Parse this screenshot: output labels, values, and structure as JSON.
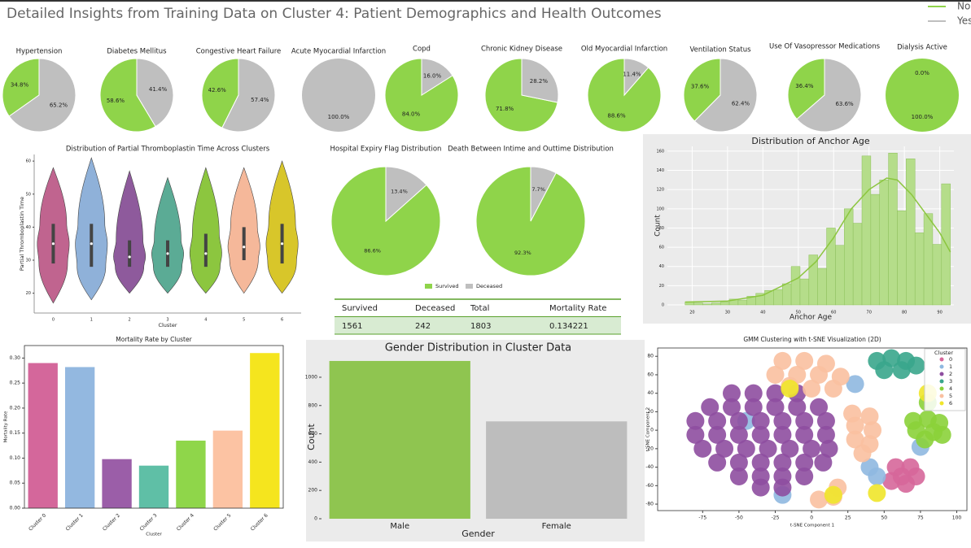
{
  "title": "Detailed Insights from Training Data on  Cluster 4: Patient Demographics and Health Outcomes",
  "chart_data": [
    {
      "type": "legend",
      "series": [
        {
          "name": "No",
          "color": "#8fd44a"
        },
        {
          "name": "Yes",
          "color": "#bfbfbf"
        }
      ]
    },
    {
      "type": "pie",
      "title": "Hypertension",
      "values": [
        34.8,
        65.2
      ],
      "value_labels": [
        "34.8%",
        "65.2%"
      ],
      "colors": [
        "#8fd44a",
        "#bfbfbf"
      ]
    },
    {
      "type": "pie",
      "title": "Diabetes Mellitus",
      "values": [
        58.6,
        41.4
      ],
      "value_labels": [
        "58.6%",
        "41.4%"
      ],
      "colors": [
        "#8fd44a",
        "#bfbfbf"
      ]
    },
    {
      "type": "pie",
      "title": "Congestive Heart Failure",
      "values": [
        42.6,
        57.4
      ],
      "value_labels": [
        "42.6%",
        "57.4%"
      ],
      "colors": [
        "#8fd44a",
        "#bfbfbf"
      ]
    },
    {
      "type": "pie",
      "title": "Acute Myocardial Infarction",
      "values": [
        0.0,
        100.0
      ],
      "value_labels": [
        "0.0%",
        "100.0%"
      ],
      "colors": [
        "#8fd44a",
        "#bfbfbf"
      ]
    },
    {
      "type": "pie",
      "title": "Copd",
      "values": [
        84.0,
        16.0
      ],
      "value_labels": [
        "84.0%",
        "16.0%"
      ],
      "colors": [
        "#8fd44a",
        "#bfbfbf"
      ]
    },
    {
      "type": "pie",
      "title": "Chronic Kidney Disease",
      "values": [
        71.8,
        28.2
      ],
      "value_labels": [
        "71.8%",
        "28.2%"
      ],
      "colors": [
        "#8fd44a",
        "#bfbfbf"
      ]
    },
    {
      "type": "pie",
      "title": "Old Myocardial Infarction",
      "values": [
        88.6,
        11.4
      ],
      "value_labels": [
        "88.6%",
        "11.4%"
      ],
      "colors": [
        "#8fd44a",
        "#bfbfbf"
      ]
    },
    {
      "type": "pie",
      "title": "Ventilation Status",
      "values": [
        37.6,
        62.4
      ],
      "value_labels": [
        "37.6%",
        "62.4%"
      ],
      "colors": [
        "#8fd44a",
        "#bfbfbf"
      ]
    },
    {
      "type": "pie",
      "title": "Use Of Vasopressor Medications",
      "values": [
        36.4,
        63.6
      ],
      "value_labels": [
        "36.4%",
        "63.6%"
      ],
      "colors": [
        "#8fd44a",
        "#bfbfbf"
      ]
    },
    {
      "type": "pie",
      "title": "Dialysis Active",
      "values": [
        100.0,
        0.0
      ],
      "value_labels": [
        "100.0%",
        "0.0%"
      ],
      "colors": [
        "#8fd44a",
        "#bfbfbf"
      ]
    },
    {
      "type": "violin",
      "title": "Distribution of Partial Thromboplastin Time Across Clusters",
      "xlabel": "Cluster",
      "ylabel": "Partial Thromboplastin Time",
      "categories": [
        "0",
        "1",
        "2",
        "3",
        "4",
        "5",
        "6"
      ],
      "colors": [
        "#c0648f",
        "#8fb1d9",
        "#8e5a9c",
        "#5bab95",
        "#8cc63f",
        "#f5b89a",
        "#d8c62a"
      ],
      "min": [
        17,
        18,
        20,
        20,
        20,
        20,
        20
      ],
      "q1": [
        29,
        28,
        28,
        28,
        28,
        30,
        29
      ],
      "median": [
        35,
        35,
        31,
        32,
        32,
        34,
        35
      ],
      "q3": [
        41,
        41,
        36,
        36,
        38,
        40,
        41
      ],
      "max": [
        58,
        61,
        57,
        55,
        58,
        58,
        60
      ],
      "ylim": [
        14,
        62
      ],
      "yticks": [
        20,
        30,
        40,
        50,
        60
      ]
    },
    {
      "type": "pie",
      "title": "Hospital Expiry Flag Distribution",
      "values": [
        86.6,
        13.4
      ],
      "value_labels": [
        "86.6%",
        "13.4%"
      ],
      "colors": [
        "#8fd44a",
        "#bfbfbf"
      ]
    },
    {
      "type": "pie",
      "title": "Death Between Intime and Outtime Distribution",
      "values": [
        92.3,
        7.7
      ],
      "value_labels": [
        "92.3%",
        "7.7%"
      ],
      "colors": [
        "#8fd44a",
        "#bfbfbf"
      ]
    },
    {
      "type": "legend",
      "series": [
        {
          "name": "Survived",
          "color": "#8fd44a"
        },
        {
          "name": "Deceased",
          "color": "#bfbfbf"
        }
      ]
    },
    {
      "type": "histogram",
      "title": "Distribution of Anchor Age",
      "xlabel": "Anchor Age",
      "ylabel": "Count",
      "bins": [
        18,
        20.5,
        23,
        25.5,
        28,
        30.5,
        33,
        35.5,
        38,
        40.5,
        43,
        45.5,
        48,
        50.5,
        53,
        55.5,
        58,
        60.5,
        63,
        65.5,
        68,
        70.5,
        73,
        75.5,
        78,
        80.5,
        83,
        85.5,
        88,
        90.5,
        93
      ],
      "values": [
        3,
        2,
        1,
        2,
        3,
        6,
        5,
        9,
        12,
        15,
        16,
        22,
        40,
        27,
        52,
        38,
        80,
        62,
        100,
        85,
        155,
        115,
        130,
        158,
        98,
        152,
        75,
        95,
        63,
        126
      ],
      "color": "#b5dd8a",
      "kde": {
        "x": [
          18,
          30,
          40,
          50,
          55,
          60,
          65,
          70,
          75,
          78,
          82,
          86,
          90,
          93
        ],
        "values": [
          3,
          4,
          10,
          28,
          45,
          70,
          100,
          120,
          132,
          130,
          115,
          95,
          75,
          55
        ]
      },
      "xlim": [
        13,
        94
      ],
      "xticks": [
        20,
        30,
        40,
        50,
        60,
        70,
        80,
        90
      ],
      "ylim": [
        0,
        165
      ],
      "yticks": [
        0,
        20,
        40,
        60,
        80,
        100,
        120,
        140,
        160
      ],
      "grid": true
    },
    {
      "type": "bar",
      "title": "Mortality Rate by Cluster",
      "xlabel": "Cluster",
      "ylabel": "Mortality Rate",
      "categories": [
        "Cluster 0",
        "Cluster 1",
        "Cluster 2",
        "Cluster 3",
        "Cluster 4",
        "Cluster 5",
        "Cluster 6"
      ],
      "values": [
        0.29,
        0.282,
        0.098,
        0.085,
        0.135,
        0.155,
        0.31
      ],
      "colors": [
        "#d4679b",
        "#93b8e0",
        "#9b5ea8",
        "#5fbfa6",
        "#8fd64a",
        "#fcc3a3",
        "#f5e51e"
      ],
      "ylim": [
        0,
        0.325
      ],
      "yticks": [
        {
          "value": 0,
          "label": "0.00"
        },
        0.05,
        {
          "value": 0.1,
          "label": "0.10"
        },
        0.15,
        {
          "value": 0.2,
          "label": "0.20"
        },
        0.25,
        {
          "value": 0.3,
          "label": "0.30"
        }
      ],
      "rotate_labels": true
    },
    {
      "type": "bar",
      "title": "Gender Distribution in Cluster Data",
      "xlabel": "Gender",
      "ylabel": "Count",
      "categories": [
        "Male",
        "Female"
      ],
      "values": [
        1115,
        688
      ],
      "colors": [
        "#8fc550",
        "#bdbdbd"
      ],
      "ylim": [
        0,
        1155
      ],
      "yticks": [
        0,
        200,
        400,
        600,
        800,
        1000
      ]
    },
    {
      "type": "scatter",
      "title": "GMM Clustering with t-SNE Visualization (2D)",
      "xlabel": "t-SNE Component 1",
      "ylabel": "t-SNE Component 2",
      "legend_title": "Cluster",
      "xlim": [
        -106,
        107
      ],
      "xticks": [
        -75,
        -50,
        -25,
        0,
        25,
        50,
        75,
        100
      ],
      "ylim": [
        -87,
        89
      ],
      "yticks": [
        -80,
        -60,
        -40,
        -20,
        0,
        20,
        40,
        60,
        80
      ],
      "series": [
        {
          "name": "0",
          "color": "#d6679a",
          "x": [
            58,
            68,
            62,
            72,
            65,
            55
          ],
          "values": [
            -40,
            -40,
            -50,
            -50,
            -58,
            -55
          ]
        },
        {
          "name": "1",
          "color": "#8fb8e0",
          "x": [
            40,
            45,
            -45,
            75,
            30,
            -20
          ],
          "values": [
            -40,
            -50,
            10,
            -18,
            50,
            -70
          ]
        },
        {
          "name": "2",
          "color": "#8e4ea0",
          "x": [
            -55,
            -40,
            -25,
            -10,
            -70,
            -55,
            -40,
            -25,
            -10,
            5,
            -80,
            -65,
            -50,
            -35,
            -20,
            -5,
            10,
            -80,
            -65,
            -50,
            -35,
            -20,
            -5,
            10,
            -75,
            -60,
            -45,
            -30,
            -15,
            0,
            12,
            -65,
            -50,
            -35,
            -20,
            -5,
            8,
            -50,
            -35,
            -20,
            -5,
            -35,
            -20
          ],
          "values": [
            40,
            40,
            40,
            40,
            25,
            25,
            25,
            25,
            25,
            25,
            10,
            10,
            10,
            10,
            10,
            10,
            10,
            -5,
            -5,
            -5,
            -5,
            -5,
            -5,
            -5,
            -20,
            -20,
            -20,
            -20,
            -20,
            -20,
            -20,
            -35,
            -35,
            -35,
            -35,
            -35,
            -35,
            -50,
            -50,
            -50,
            -50,
            -62,
            -62
          ]
        },
        {
          "name": "3",
          "color": "#3aa68c",
          "x": [
            45,
            55,
            65,
            50,
            62,
            72
          ],
          "values": [
            75,
            78,
            75,
            65,
            65,
            70
          ]
        },
        {
          "name": "4",
          "color": "#8bd13a",
          "x": [
            70,
            80,
            88,
            72,
            84,
            78,
            90,
            80
          ],
          "values": [
            10,
            12,
            8,
            0,
            -2,
            -10,
            -5,
            30
          ]
        },
        {
          "name": "5",
          "color": "#f9c0a0",
          "x": [
            -20,
            -5,
            10,
            -25,
            -10,
            5,
            20,
            -15,
            0,
            15,
            28,
            40,
            30,
            42,
            30,
            40,
            35,
            5,
            15,
            18
          ],
          "values": [
            75,
            75,
            72,
            60,
            60,
            60,
            58,
            48,
            45,
            45,
            18,
            15,
            5,
            0,
            -10,
            -15,
            -25,
            -75,
            -72,
            -62
          ]
        },
        {
          "name": "6",
          "color": "#f0e52a",
          "x": [
            45,
            15,
            -15,
            80
          ],
          "values": [
            -68,
            -70,
            45,
            40
          ]
        }
      ]
    }
  ],
  "table": {
    "columns": [
      "Survived",
      "Deceased",
      "Total",
      "Mortality Rate"
    ],
    "rows": [
      [
        "1561",
        "242",
        "1803",
        "0.134221"
      ]
    ]
  }
}
